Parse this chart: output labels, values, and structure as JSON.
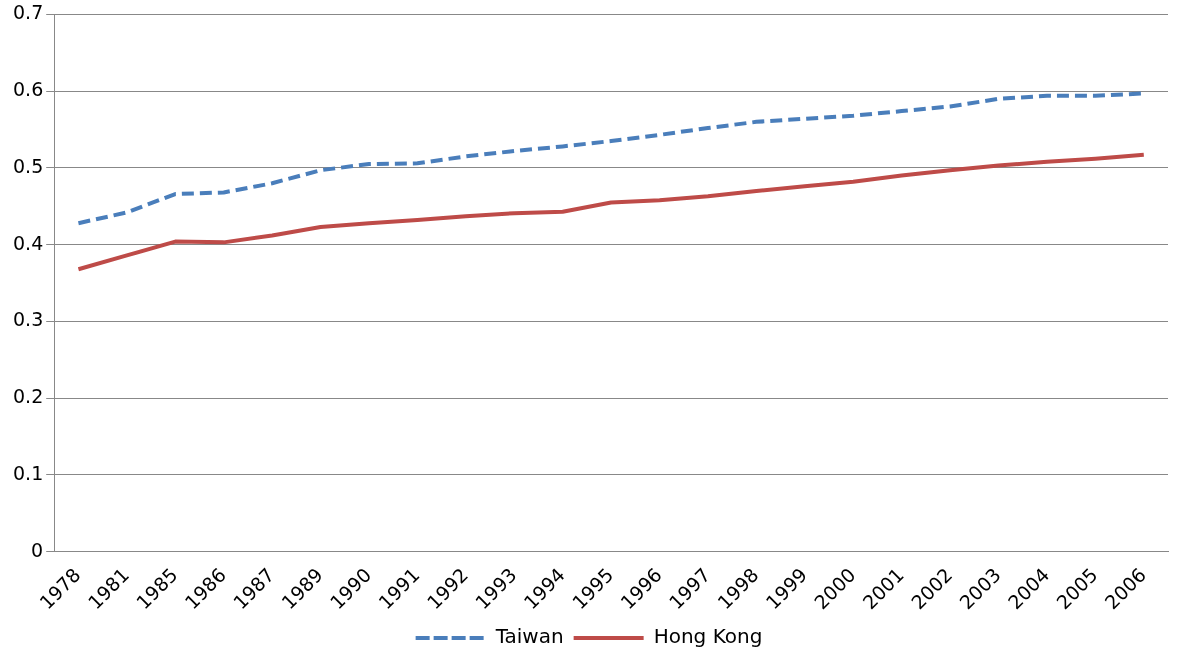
{
  "chart_data": {
    "type": "line",
    "categories": [
      "1978",
      "1981",
      "1985",
      "1986",
      "1987",
      "1989",
      "1990",
      "1991",
      "1992",
      "1993",
      "1994",
      "1995",
      "1996",
      "1997",
      "1998",
      "1999",
      "2000",
      "2001",
      "2002",
      "2003",
      "2004",
      "2005",
      "2006"
    ],
    "series": [
      {
        "name": "Taiwan",
        "color": "#4a7ebb",
        "line_style": "dashed",
        "values": [
          0.428,
          0.442,
          0.466,
          0.468,
          0.48,
          0.497,
          0.505,
          0.506,
          0.515,
          0.522,
          0.528,
          0.535,
          0.543,
          0.552,
          0.56,
          0.564,
          0.568,
          0.574,
          0.58,
          0.59,
          0.594,
          0.594,
          0.597
        ]
      },
      {
        "name": "Hong Kong",
        "color": "#be4b48",
        "line_style": "solid",
        "values": [
          0.368,
          0.386,
          0.404,
          0.403,
          0.412,
          0.423,
          0.428,
          0.432,
          0.437,
          0.441,
          0.443,
          0.455,
          0.458,
          0.463,
          0.47,
          0.476,
          0.482,
          0.49,
          0.497,
          0.503,
          0.508,
          0.512,
          0.517
        ]
      }
    ],
    "ylim": [
      0,
      0.7
    ],
    "yticks": [
      0,
      0.1,
      0.2,
      0.3,
      0.4,
      0.5,
      0.6,
      0.7
    ],
    "grid": "y",
    "legend": "bottom",
    "marker": "none"
  }
}
